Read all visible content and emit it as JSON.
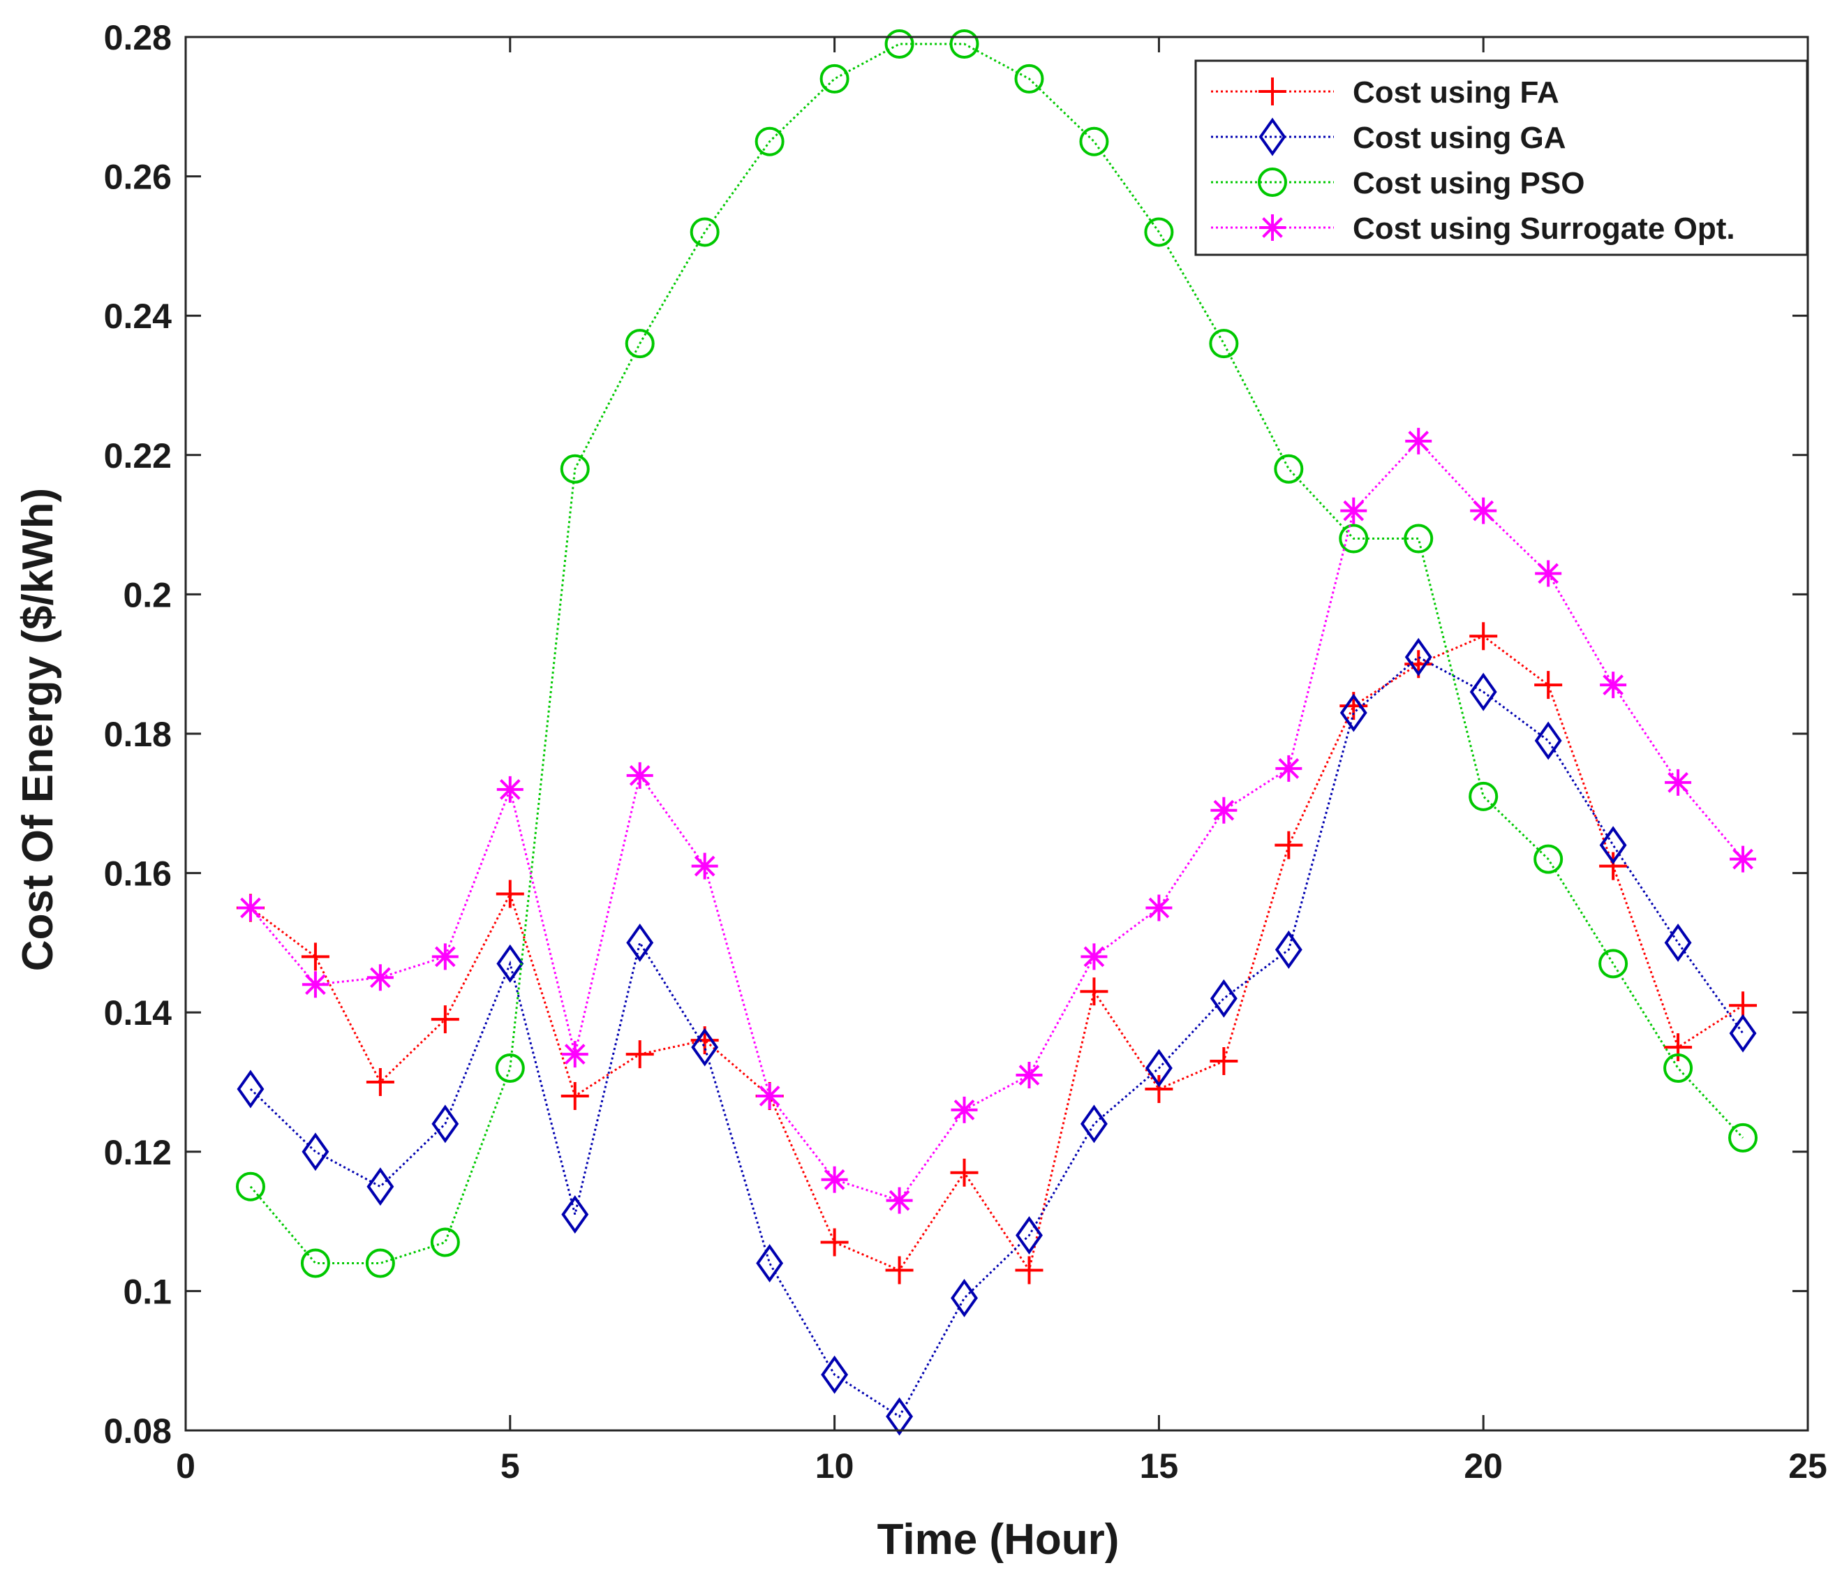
{
  "chart_data": {
    "type": "line",
    "title": "",
    "xlabel": "Time (Hour)",
    "ylabel": "Cost Of Energy ($/kWh)",
    "xlim": [
      0,
      25
    ],
    "ylim": [
      0.08,
      0.28
    ],
    "x_ticks": [
      0,
      5,
      10,
      15,
      20,
      25
    ],
    "x_tick_labels": [
      "0",
      "5",
      "10",
      "15",
      "20",
      "25"
    ],
    "y_ticks": [
      0.08,
      0.1,
      0.12,
      0.14,
      0.16,
      0.18,
      0.2,
      0.22,
      0.24,
      0.26,
      0.28
    ],
    "y_tick_labels": [
      "0.08",
      "0.1",
      "0.12",
      "0.14",
      "0.16",
      "0.18",
      "0.2",
      "0.22",
      "0.24",
      "0.26",
      "0.28"
    ],
    "grid": false,
    "legend_position": "top-right",
    "x": [
      1,
      2,
      3,
      4,
      5,
      6,
      7,
      8,
      9,
      10,
      11,
      12,
      13,
      14,
      15,
      16,
      17,
      18,
      19,
      20,
      21,
      22,
      23,
      24
    ],
    "series": [
      {
        "name": "Cost using FA",
        "color": "#ff0000",
        "marker": "plus",
        "values": [
          0.155,
          0.148,
          0.13,
          0.139,
          0.157,
          0.128,
          0.134,
          0.136,
          0.128,
          0.107,
          0.103,
          0.117,
          0.103,
          0.143,
          0.129,
          0.133,
          0.164,
          0.184,
          0.19,
          0.194,
          0.187,
          0.161,
          0.135,
          0.141
        ]
      },
      {
        "name": "Cost using GA",
        "color": "#0000b0",
        "marker": "diamond",
        "values": [
          0.129,
          0.12,
          0.115,
          0.124,
          0.147,
          0.111,
          0.15,
          0.135,
          0.104,
          0.088,
          0.082,
          0.099,
          0.108,
          0.124,
          0.132,
          0.142,
          0.149,
          0.183,
          0.191,
          0.186,
          0.179,
          0.164,
          0.15,
          0.137
        ]
      },
      {
        "name": "Cost using PSO",
        "color": "#00c800",
        "marker": "circle",
        "values": [
          0.115,
          0.104,
          0.104,
          0.107,
          0.132,
          0.218,
          0.236,
          0.252,
          0.265,
          0.274,
          0.279,
          0.279,
          0.274,
          0.265,
          0.252,
          0.236,
          0.218,
          0.208,
          0.208,
          0.171,
          0.162,
          0.147,
          0.132,
          0.122
        ]
      },
      {
        "name": "Cost using Surrogate Opt.",
        "color": "#ff00ff",
        "marker": "asterisk",
        "values": [
          0.155,
          0.144,
          0.145,
          0.148,
          0.172,
          0.134,
          0.174,
          0.161,
          0.128,
          0.116,
          0.113,
          0.126,
          0.131,
          0.148,
          0.155,
          0.169,
          0.175,
          0.212,
          0.222,
          0.212,
          0.203,
          0.187,
          0.173,
          0.162
        ]
      }
    ]
  }
}
